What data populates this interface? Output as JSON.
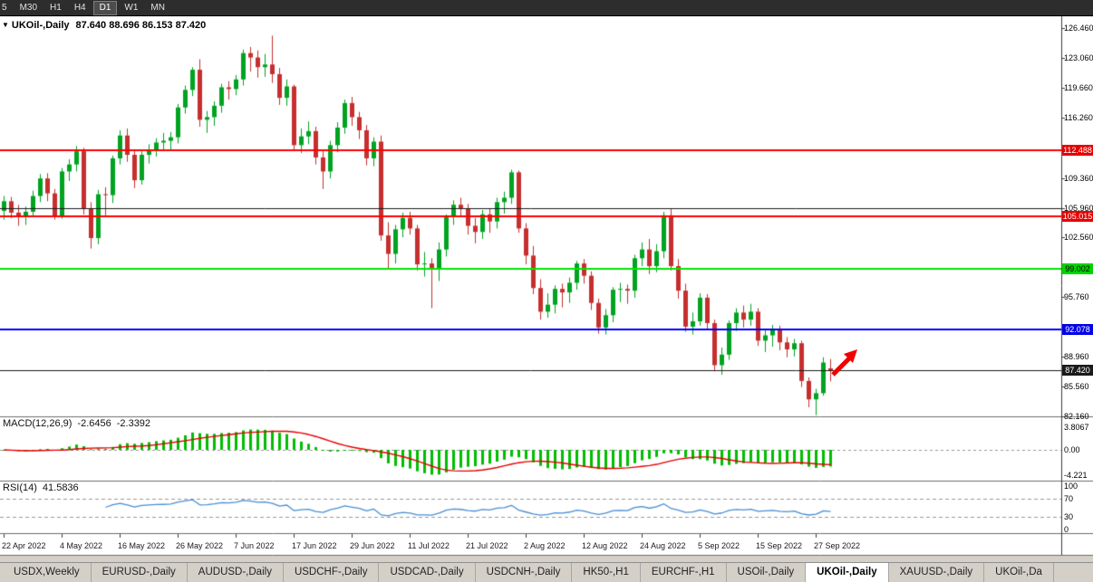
{
  "toolbar": {
    "timeframes": [
      {
        "label": "5",
        "active": false
      },
      {
        "label": "M30",
        "active": false
      },
      {
        "label": "H1",
        "active": false
      },
      {
        "label": "H4",
        "active": false
      },
      {
        "label": "D1",
        "active": true
      },
      {
        "label": "W1",
        "active": false
      },
      {
        "label": "MN",
        "active": false
      }
    ]
  },
  "chart_title": {
    "symbol": "UKOil-,Daily",
    "ohlc": "87.640 88.696 86.153 87.420"
  },
  "indicators": {
    "macd": {
      "name": "MACD(12,26,9)",
      "value_main": "-2.6456",
      "value_signal": "-2.3392",
      "fast": 12,
      "slow": 26,
      "signal": 9,
      "histogram_color": "#00bd00",
      "signal_color": "#e60000",
      "scale": [
        {
          "value": 3.8067,
          "label": "3.8067"
        },
        {
          "value": 0,
          "label": "0.00"
        },
        {
          "value": -4.221,
          "label": "-4.221"
        }
      ]
    },
    "rsi": {
      "name": "RSI(14)",
      "value": "41.5836",
      "period": 14,
      "line_color": "#4a8fd3",
      "levels": [
        {
          "value": 100,
          "label": "100"
        },
        {
          "value": 70,
          "label": "70"
        },
        {
          "value": 30,
          "label": "30"
        },
        {
          "value": 0,
          "label": "0"
        }
      ]
    }
  },
  "chart_data": {
    "type": "candlestick",
    "symbol": "UKOil-",
    "timeframe": "Daily",
    "visible_price_min": 82.16,
    "visible_price_max": 126.46,
    "up_color": "#00a321",
    "down_color": "#c62f2f",
    "price_axis_ticks": [
      {
        "value": 126.46,
        "label": "126.460"
      },
      {
        "value": 123.06,
        "label": "123.060"
      },
      {
        "value": 119.66,
        "label": "119.660"
      },
      {
        "value": 116.26,
        "label": "116.260"
      },
      {
        "value": 109.36,
        "label": "109.360"
      },
      {
        "value": 105.96,
        "label": "105.960"
      },
      {
        "value": 102.56,
        "label": "102.560"
      },
      {
        "value": 95.76,
        "label": "95.760"
      },
      {
        "value": 88.96,
        "label": "88.960"
      },
      {
        "value": 85.56,
        "label": "85.560"
      },
      {
        "value": 82.16,
        "label": "82.160"
      }
    ],
    "horizontal_lines": [
      {
        "price": 112.488,
        "color": "#ff0000",
        "width": 2,
        "badge": "112.488",
        "badge_bg": "#e60000",
        "badge_fg": "#ffffff"
      },
      {
        "price": 105.96,
        "color": "#1a1a1a",
        "width": 1
      },
      {
        "price": 105.015,
        "color": "#ff0000",
        "width": 2,
        "badge": "105.015",
        "badge_bg": "#e60000",
        "badge_fg": "#ffffff"
      },
      {
        "price": 99.002,
        "color": "#00e600",
        "width": 2,
        "badge": "99.002",
        "badge_bg": "#00d400",
        "badge_fg": "#000000"
      },
      {
        "price": 92.078,
        "color": "#0000ff",
        "width": 2,
        "badge": "92.078",
        "badge_bg": "#0000e6",
        "badge_fg": "#ffffff"
      },
      {
        "price": 87.42,
        "color": "#1a1a1a",
        "width": 1,
        "badge": "87.420",
        "badge_bg": "#1a1a1a",
        "badge_fg": "#ffffff"
      }
    ],
    "x_axis_labels": [
      {
        "bar": 0,
        "label": "22 Apr 2022"
      },
      {
        "bar": 8,
        "label": "4 May 2022"
      },
      {
        "bar": 16,
        "label": "16 May 2022"
      },
      {
        "bar": 24,
        "label": "26 May 2022"
      },
      {
        "bar": 32,
        "label": "7 Jun 2022"
      },
      {
        "bar": 40,
        "label": "17 Jun 2022"
      },
      {
        "bar": 48,
        "label": "29 Jun 2022"
      },
      {
        "bar": 56,
        "label": "11 Jul 2022"
      },
      {
        "bar": 64,
        "label": "21 Jul 2022"
      },
      {
        "bar": 72,
        "label": "2 Aug 2022"
      },
      {
        "bar": 80,
        "label": "12 Aug 2022"
      },
      {
        "bar": 88,
        "label": "24 Aug 2022"
      },
      {
        "bar": 96,
        "label": "5 Sep 2022"
      },
      {
        "bar": 104,
        "label": "15 Sep 2022"
      },
      {
        "bar": 112,
        "label": "27 Sep 2022"
      }
    ],
    "candles_ohlc": [
      [
        105.6,
        107.3,
        104.6,
        106.7
      ],
      [
        106.7,
        107.2,
        104.8,
        105.4
      ],
      [
        105.4,
        106.3,
        103.9,
        104.9
      ],
      [
        104.9,
        106.1,
        104.0,
        105.5
      ],
      [
        105.5,
        107.9,
        105.0,
        107.3
      ],
      [
        107.3,
        109.8,
        106.6,
        109.3
      ],
      [
        109.3,
        109.9,
        106.7,
        107.6
      ],
      [
        107.6,
        108.1,
        104.6,
        105.0
      ],
      [
        105.0,
        110.5,
        104.7,
        110.1
      ],
      [
        110.1,
        111.5,
        109.0,
        110.9
      ],
      [
        110.9,
        113.0,
        110.1,
        112.4
      ],
      [
        112.4,
        112.8,
        105.2,
        105.9
      ],
      [
        105.9,
        106.6,
        101.3,
        102.5
      ],
      [
        102.5,
        108.0,
        101.8,
        107.5
      ],
      [
        107.5,
        108.3,
        105.1,
        107.4
      ],
      [
        107.4,
        111.9,
        106.5,
        111.6
      ],
      [
        111.6,
        114.8,
        110.9,
        114.2
      ],
      [
        114.2,
        115.0,
        111.2,
        112.0
      ],
      [
        112.0,
        112.4,
        108.2,
        109.1
      ],
      [
        109.1,
        112.4,
        108.6,
        112.0
      ],
      [
        112.0,
        113.2,
        111.0,
        112.6
      ],
      [
        112.6,
        113.9,
        111.8,
        113.4
      ],
      [
        113.4,
        114.5,
        112.4,
        113.6
      ],
      [
        113.6,
        114.6,
        112.6,
        114.0
      ],
      [
        114.0,
        117.8,
        113.3,
        117.4
      ],
      [
        117.4,
        119.9,
        116.7,
        119.4
      ],
      [
        119.4,
        122.0,
        118.7,
        121.7
      ],
      [
        121.7,
        122.9,
        115.2,
        116.0
      ],
      [
        116.0,
        117.0,
        114.5,
        116.3
      ],
      [
        116.3,
        118.1,
        115.3,
        117.6
      ],
      [
        117.6,
        120.1,
        116.8,
        119.7
      ],
      [
        119.7,
        120.4,
        118.3,
        119.5
      ],
      [
        119.5,
        121.1,
        118.8,
        120.6
      ],
      [
        120.6,
        124.0,
        119.9,
        123.6
      ],
      [
        123.6,
        124.3,
        121.5,
        123.1
      ],
      [
        123.1,
        123.9,
        120.8,
        122.0
      ],
      [
        122.0,
        123.5,
        120.9,
        122.3
      ],
      [
        122.3,
        125.6,
        120.2,
        121.2
      ],
      [
        121.2,
        121.9,
        117.7,
        118.5
      ],
      [
        118.5,
        120.6,
        117.6,
        119.8
      ],
      [
        119.8,
        120.0,
        112.6,
        113.1
      ],
      [
        113.1,
        115.0,
        112.2,
        114.1
      ],
      [
        114.1,
        115.8,
        113.2,
        114.7
      ],
      [
        114.7,
        115.2,
        110.9,
        111.7
      ],
      [
        111.7,
        112.4,
        108.1,
        110.1
      ],
      [
        110.1,
        113.6,
        109.3,
        113.1
      ],
      [
        113.1,
        115.7,
        112.3,
        115.1
      ],
      [
        115.1,
        118.3,
        114.4,
        117.9
      ],
      [
        117.9,
        118.6,
        115.3,
        116.3
      ],
      [
        116.3,
        116.9,
        113.8,
        114.8
      ],
      [
        114.8,
        115.4,
        110.8,
        111.6
      ],
      [
        111.6,
        114.0,
        110.7,
        113.5
      ],
      [
        113.5,
        114.2,
        102.2,
        102.8
      ],
      [
        102.8,
        104.3,
        99.0,
        100.7
      ],
      [
        100.7,
        104.0,
        99.6,
        103.5
      ],
      [
        103.5,
        105.4,
        102.6,
        104.8
      ],
      [
        104.8,
        105.5,
        102.9,
        103.6
      ],
      [
        103.6,
        104.0,
        98.8,
        99.5
      ],
      [
        99.5,
        100.9,
        98.1,
        99.6
      ],
      [
        99.6,
        100.2,
        94.5,
        99.1
      ],
      [
        99.1,
        102.0,
        97.6,
        101.2
      ],
      [
        101.2,
        105.2,
        100.4,
        104.9
      ],
      [
        104.9,
        106.8,
        104.0,
        106.3
      ],
      [
        106.3,
        107.1,
        104.9,
        105.9
      ],
      [
        105.9,
        106.4,
        102.9,
        103.9
      ],
      [
        103.9,
        104.8,
        101.9,
        103.2
      ],
      [
        103.2,
        105.7,
        102.4,
        105.2
      ],
      [
        105.2,
        105.9,
        103.1,
        104.4
      ],
      [
        104.4,
        107.1,
        103.6,
        106.6
      ],
      [
        106.6,
        107.8,
        105.3,
        107.1
      ],
      [
        107.1,
        110.3,
        106.4,
        110.0
      ],
      [
        110.0,
        110.2,
        103.1,
        103.6
      ],
      [
        103.6,
        104.2,
        99.5,
        100.5
      ],
      [
        100.5,
        101.6,
        96.1,
        96.8
      ],
      [
        96.8,
        97.8,
        93.2,
        94.1
      ],
      [
        94.1,
        96.2,
        93.4,
        94.9
      ],
      [
        94.9,
        97.1,
        93.9,
        96.7
      ],
      [
        96.7,
        97.3,
        94.6,
        96.3
      ],
      [
        96.3,
        98.0,
        95.1,
        97.4
      ],
      [
        97.4,
        99.9,
        96.6,
        99.6
      ],
      [
        99.6,
        100.1,
        97.3,
        98.2
      ],
      [
        98.2,
        98.7,
        94.3,
        95.1
      ],
      [
        95.1,
        95.6,
        91.6,
        92.3
      ],
      [
        92.3,
        94.4,
        91.5,
        93.7
      ],
      [
        93.7,
        96.9,
        92.9,
        96.6
      ],
      [
        96.6,
        97.4,
        95.2,
        96.7
      ],
      [
        96.7,
        97.2,
        95.0,
        96.5
      ],
      [
        96.5,
        100.6,
        95.7,
        100.2
      ],
      [
        100.2,
        102.0,
        99.3,
        101.2
      ],
      [
        101.2,
        102.4,
        98.4,
        99.3
      ],
      [
        99.3,
        101.8,
        98.6,
        101.0
      ],
      [
        101.0,
        105.5,
        100.2,
        105.1
      ],
      [
        105.1,
        105.8,
        98.8,
        99.3
      ],
      [
        99.3,
        100.1,
        95.6,
        96.5
      ],
      [
        96.5,
        97.3,
        91.8,
        92.4
      ],
      [
        92.4,
        94.0,
        91.5,
        93.0
      ],
      [
        93.0,
        96.2,
        92.5,
        95.7
      ],
      [
        95.7,
        96.1,
        92.1,
        92.8
      ],
      [
        92.8,
        93.2,
        87.3,
        88.0
      ],
      [
        88.0,
        90.0,
        86.9,
        89.2
      ],
      [
        89.2,
        93.1,
        88.6,
        92.8
      ],
      [
        92.8,
        94.5,
        91.9,
        94.0
      ],
      [
        94.0,
        94.8,
        92.3,
        93.2
      ],
      [
        93.2,
        95.0,
        92.5,
        94.1
      ],
      [
        94.1,
        94.5,
        90.2,
        90.8
      ],
      [
        90.8,
        92.0,
        89.5,
        91.4
      ],
      [
        91.4,
        92.6,
        90.1,
        92.0
      ],
      [
        92.0,
        92.5,
        89.7,
        90.6
      ],
      [
        90.6,
        91.2,
        88.9,
        89.8
      ],
      [
        89.8,
        91.0,
        89.0,
        90.5
      ],
      [
        90.5,
        90.8,
        85.5,
        86.2
      ],
      [
        86.2,
        86.6,
        83.2,
        84.1
      ],
      [
        84.1,
        85.3,
        82.3,
        84.8
      ],
      [
        84.8,
        88.9,
        84.5,
        88.3
      ],
      [
        87.64,
        88.696,
        86.153,
        87.42
      ]
    ],
    "annotations": [
      {
        "type": "arrow",
        "direction": "up-right",
        "color": "#f20000"
      }
    ]
  },
  "tabs": {
    "active": "UKOil-,Daily",
    "items": [
      "USDX,Weekly",
      "EURUSD-,Daily",
      "AUDUSD-,Daily",
      "USDCHF-,Daily",
      "USDCAD-,Daily",
      "USDCNH-,Daily",
      "HK50-,H1",
      "EURCHF-,H1",
      "USOil-,Daily",
      "UKOil-,Daily",
      "XAUUSD-,Daily",
      "UKOil-,Da"
    ]
  }
}
